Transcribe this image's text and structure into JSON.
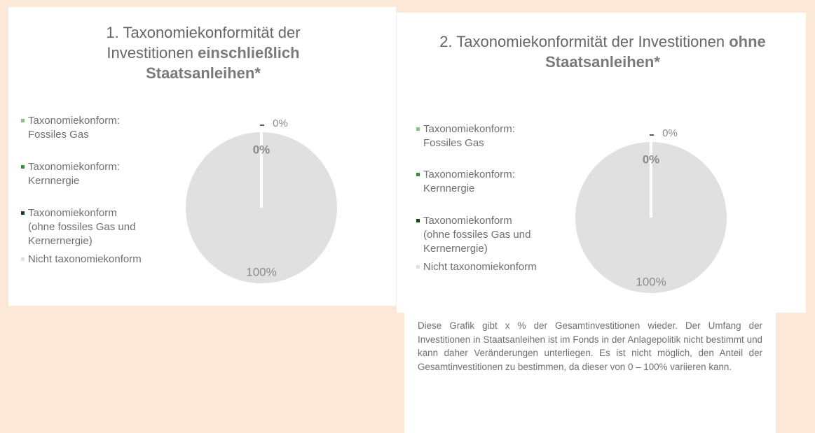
{
  "chart_data": [
    {
      "type": "pie",
      "title": "1. Taxonomiekonformität der Investitionen",
      "title_bold": "einschließlich Staatsanleihen*",
      "categories": [
        "Taxonomiekonform: Fossiles Gas",
        "Taxonomiekonform: Kernnergie",
        "Taxonomiekonform (ohne fossiles Gas und Kernernergie)",
        "Nicht taxonomiekonform"
      ],
      "values": [
        0,
        0,
        0,
        100
      ],
      "value_labels": [
        "0%",
        "0%",
        null,
        "100%"
      ],
      "colors": [
        "#8fbc8f",
        "#3c8c3c",
        "#0d4a12",
        "#e0e0e0"
      ]
    },
    {
      "type": "pie",
      "title": "2. Taxonomiekonformität der Investitionen",
      "title_bold": "ohne Staatsanleihen*",
      "categories": [
        "Taxonomiekonform: Fossiles Gas",
        "Taxonomiekonform: Kernnergie",
        "Taxonomiekonform (ohne fossiles Gas und Kernernergie)",
        "Nicht taxonomiekonform"
      ],
      "values": [
        0,
        0,
        0,
        100
      ],
      "value_labels": [
        "0%",
        "0%",
        null,
        "100%"
      ],
      "colors": [
        "#8fbc8f",
        "#3c8c3c",
        "#0d4a12",
        "#e0e0e0"
      ]
    }
  ],
  "note": "Diese Grafik gibt x % der Gesamtinvestitionen wieder. Der Umfang der Investitionen in Staatsanleihen ist im Fonds in der Anlagepolitik nicht bestimmt und kann daher Veränderungen unterliegen. Es ist nicht möglich, den Anteil der Gesamtinvestitionen zu bestimmen, da dieser von 0 – 100% variieren kann."
}
